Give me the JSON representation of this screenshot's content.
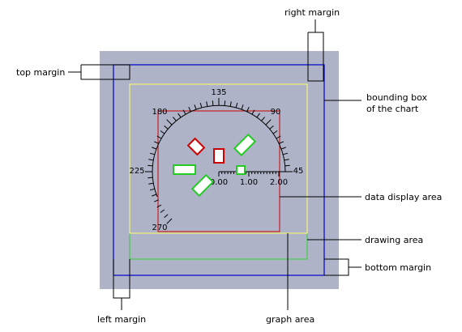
{
  "colors": {
    "chart_background": "#aeb3c8",
    "bounding_box": "#0000cc",
    "graph_area": "#ffff66",
    "drawing_area": "#33cc33",
    "data_display_area": "#cc0000",
    "symbol_red": "#cc0000",
    "symbol_green": "#22cc22",
    "leader_lines": "#000000"
  },
  "labels": {
    "top_margin": "top margin",
    "right_margin": "right margin",
    "bounding_box": "bounding box",
    "of_the_chart": "of the chart",
    "data_display_area": "data display area",
    "drawing_area": "drawing area",
    "bottom_margin": "bottom margin",
    "graph_area": "graph area",
    "left_margin": "left margin"
  },
  "polar": {
    "angle_labels": {
      "a0": "45",
      "a45": "90",
      "a90": "135",
      "a135": "180",
      "a180": "225",
      "a225": "270"
    },
    "radial_labels": [
      "0.00",
      "1.00",
      "2.00"
    ]
  }
}
